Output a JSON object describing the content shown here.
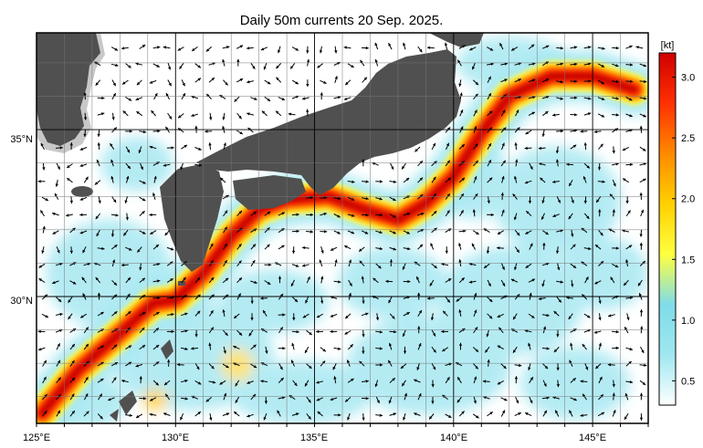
{
  "title": "Daily 50m currents 20 Sep. 2025.",
  "map": {
    "lon_range": [
      125,
      147
    ],
    "lat_range": [
      26.2,
      37.9
    ],
    "lon_ticks": [
      "125°E",
      "130°E",
      "135°E",
      "140°E",
      "145°E"
    ],
    "lat_ticks": [
      "30°N",
      "35°N"
    ],
    "land_color": "#505050",
    "shallow_color": "#c8c8c8",
    "ocean_color": "#ffffff"
  },
  "colorbar": {
    "unit": "[kt]",
    "ticks": [
      "0.5",
      "1.0",
      "1.5",
      "2.0",
      "2.5",
      "3.0"
    ],
    "range": [
      0.3,
      3.2
    ],
    "stops": [
      "#ffffff",
      "#9fe7f0",
      "#7fdce8",
      "#ffff40",
      "#ffd000",
      "#ff8a00",
      "#ff3000",
      "#d00000"
    ]
  },
  "currents": {
    "kuroshio_axis": [
      [
        125.2,
        26.5
      ],
      [
        126.5,
        27.8
      ],
      [
        128,
        28.9
      ],
      [
        129.2,
        29.8
      ],
      [
        130,
        29.9
      ],
      [
        131,
        30.7
      ],
      [
        132,
        31.8
      ],
      [
        133,
        32.6
      ],
      [
        134,
        32.9
      ],
      [
        135.5,
        33.0
      ],
      [
        136.8,
        32.6
      ],
      [
        138,
        32.3
      ],
      [
        139,
        32.8
      ],
      [
        140,
        33.6
      ],
      [
        141,
        34.9
      ],
      [
        142,
        36.0
      ],
      [
        143.5,
        36.6
      ],
      [
        145,
        36.6
      ],
      [
        146.5,
        36.2
      ]
    ]
  }
}
